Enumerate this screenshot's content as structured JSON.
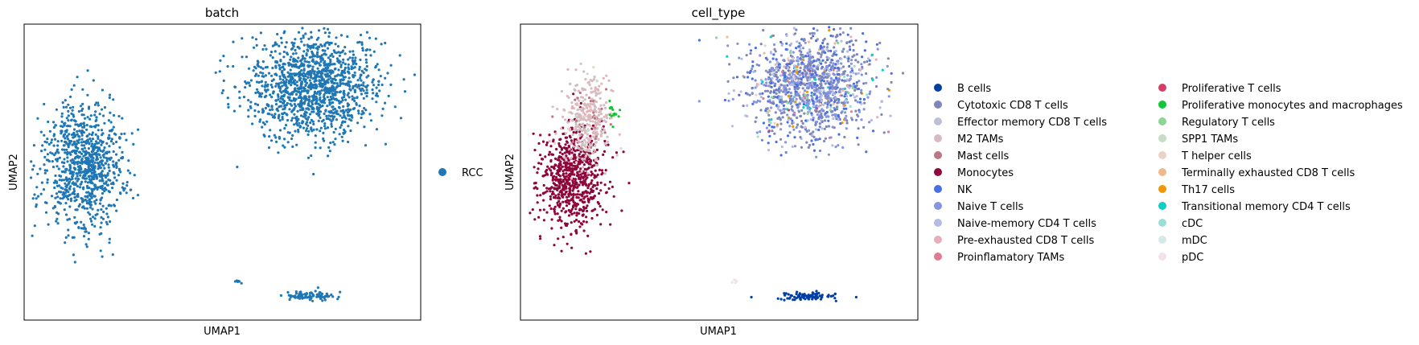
{
  "chart_data": [
    {
      "type": "scatter",
      "title": "batch",
      "xlabel": "UMAP1",
      "ylabel": "UMAP2",
      "grid": false,
      "legend_position": "right",
      "legend": [
        {
          "label": "RCC",
          "color": "#1f77b4"
        }
      ],
      "clusters": [
        {
          "name": "left-cluster",
          "color": "#1f77b4",
          "center": [
            0.15,
            0.48
          ],
          "spread": [
            0.1,
            0.22
          ],
          "count": 900
        },
        {
          "name": "right-cluster",
          "color": "#1f77b4",
          "center": [
            0.73,
            0.21
          ],
          "spread": [
            0.16,
            0.18
          ],
          "count": 1300
        },
        {
          "name": "bottom-cluster",
          "color": "#1f77b4",
          "center": [
            0.72,
            0.92
          ],
          "spread": [
            0.07,
            0.015
          ],
          "count": 90
        },
        {
          "name": "small-bottom-cluster",
          "color": "#1f77b4",
          "center": [
            0.54,
            0.87
          ],
          "spread": [
            0.012,
            0.008
          ],
          "count": 6
        }
      ]
    },
    {
      "type": "scatter",
      "title": "cell_type",
      "xlabel": "UMAP1",
      "ylabel": "UMAP2",
      "grid": false,
      "legend_position": "right",
      "legend": [
        {
          "label": "B cells",
          "color": "#023fa5"
        },
        {
          "label": "Cytotoxic CD8 T cells",
          "color": "#7d87b9"
        },
        {
          "label": "Effector memory CD8 T cells",
          "color": "#bec1d4"
        },
        {
          "label": "M2 TAMs",
          "color": "#d6bcc0"
        },
        {
          "label": "Mast cells",
          "color": "#bb7784"
        },
        {
          "label": "Monocytes",
          "color": "#8e063b"
        },
        {
          "label": "NK",
          "color": "#4a6fe3"
        },
        {
          "label": "Naive T cells",
          "color": "#8595e1"
        },
        {
          "label": "Naive-memory CD4 T cells",
          "color": "#b5bbe3"
        },
        {
          "label": "Pre-exhausted CD8 T cells",
          "color": "#e6afb9"
        },
        {
          "label": "Proinflamatory TAMs",
          "color": "#e07b91"
        },
        {
          "label": "Proliferative T cells",
          "color": "#d33f6a"
        },
        {
          "label": "Proliferative monocytes and macrophages",
          "color": "#11c638"
        },
        {
          "label": "Regulatory T cells",
          "color": "#8dd593"
        },
        {
          "label": "SPP1 TAMs",
          "color": "#c6dec7"
        },
        {
          "label": "T helper cells",
          "color": "#ead3c6"
        },
        {
          "label": "Terminally exhausted CD8 T cells",
          "color": "#f0b98d"
        },
        {
          "label": "Th17 cells",
          "color": "#ef9708"
        },
        {
          "label": "Transitional memory CD4 T cells",
          "color": "#0fcfc0"
        },
        {
          "label": "cDC",
          "color": "#9cded6"
        },
        {
          "label": "mDC",
          "color": "#d5eae7"
        },
        {
          "label": "pDC",
          "color": "#f3e1eb"
        }
      ],
      "clusters": [
        {
          "name": "monocytes-cluster",
          "color": "#8e063b",
          "center": [
            0.13,
            0.52
          ],
          "spread": [
            0.08,
            0.16
          ],
          "count": 700
        },
        {
          "name": "m2-tams-cluster",
          "color": "#d6bcc0",
          "center": [
            0.17,
            0.32
          ],
          "spread": [
            0.06,
            0.14
          ],
          "count": 350
        },
        {
          "name": "myeloid-green-cluster",
          "color": "#11c638",
          "center": [
            0.23,
            0.3
          ],
          "spread": [
            0.015,
            0.04
          ],
          "count": 14
        },
        {
          "name": "tcell-cluster",
          "color": "#7d87b9",
          "center": [
            0.73,
            0.21
          ],
          "spread": [
            0.16,
            0.18
          ],
          "count": 1300
        },
        {
          "name": "b-cell-cluster",
          "color": "#023fa5",
          "center": [
            0.72,
            0.92
          ],
          "spread": [
            0.07,
            0.015
          ],
          "count": 90
        },
        {
          "name": "pdc-cluster",
          "color": "#f3e1eb",
          "center": [
            0.54,
            0.87
          ],
          "spread": [
            0.012,
            0.008
          ],
          "count": 6
        }
      ]
    }
  ]
}
